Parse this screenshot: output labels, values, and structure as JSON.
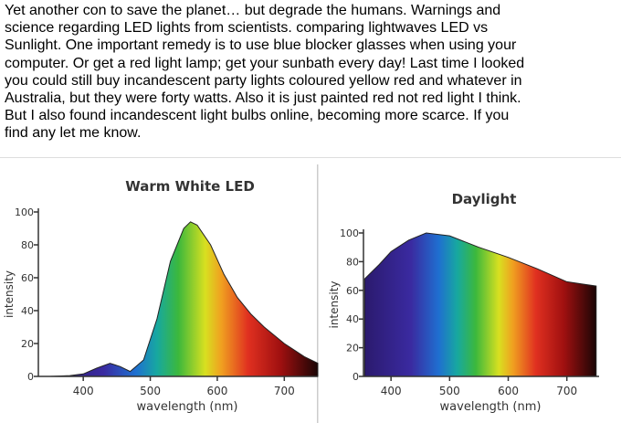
{
  "text": {
    "lines": [
      "Yet another con to save the planet… but degrade the humans. Warnings and",
      "science regarding LED lights from scientists. comparing lightwaves LED vs",
      "Sunlight. One important remedy is to use blue blocker glasses when using your",
      "computer. Or get a red light lamp; get your sunbath every day! Last time I looked",
      "you could still buy incandescent party lights coloured yellow red and whatever in",
      "Australia, but they were forty watts. Also it is just painted red not red light I think.",
      "But I also found incandescent light bulbs online, becoming more scarce. If you",
      "find any let me know."
    ]
  },
  "chart_data": [
    {
      "type": "area",
      "title": "Warm White LED",
      "x_label": "wavelength (nm)",
      "y_label": "intensity",
      "x": [
        350,
        380,
        400,
        420,
        440,
        455,
        470,
        490,
        510,
        530,
        550,
        560,
        570,
        590,
        610,
        630,
        650,
        670,
        700,
        730,
        750
      ],
      "values": [
        0,
        0.5,
        1.5,
        5,
        8,
        6,
        3,
        10,
        35,
        70,
        90,
        94,
        92,
        80,
        62,
        48,
        38,
        30,
        20,
        12,
        8
      ],
      "xlim": [
        333,
        750
      ],
      "ylim": [
        0,
        100
      ],
      "xticks": [
        400,
        500,
        600,
        700
      ],
      "yticks": [
        0,
        20,
        40,
        60,
        80,
        100
      ]
    },
    {
      "type": "area",
      "title": "Daylight",
      "x_label": "wavelength (nm)",
      "y_label": "intensity",
      "x": [
        355,
        380,
        400,
        430,
        460,
        500,
        550,
        600,
        650,
        700,
        750
      ],
      "values": [
        68,
        78,
        87,
        95,
        100,
        98,
        90,
        83,
        75,
        66,
        63
      ],
      "xlim": [
        353,
        755
      ],
      "ylim": [
        0,
        100
      ],
      "xticks": [
        400,
        500,
        600,
        700
      ],
      "yticks": [
        0,
        20,
        40,
        60,
        80,
        100
      ]
    }
  ]
}
